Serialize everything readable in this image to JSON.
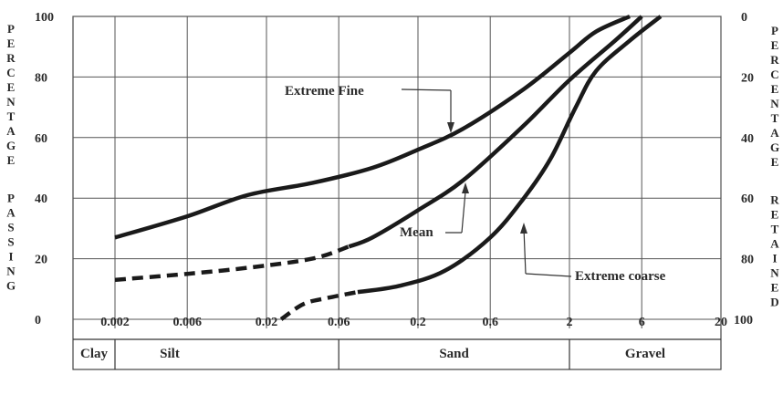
{
  "chart_data": {
    "type": "line",
    "x_scale": "log",
    "x_ticks": [
      "0.002",
      "0.006",
      "0.02",
      "0.06",
      "0.2",
      "0.6",
      "2",
      "6",
      "20"
    ],
    "y_left_ticks": [
      "100",
      "80",
      "60",
      "40",
      "20",
      "0"
    ],
    "y_right_ticks": [
      "0",
      "20",
      "40",
      "60",
      "80",
      "100"
    ],
    "ylim": [
      0,
      100
    ],
    "xlim": [
      0.002,
      20
    ],
    "y_left_label": "PERCENTAGE PASSING",
    "y_right_label": "PERCENTAGE RETAINED",
    "grid": true,
    "zones": [
      {
        "name": "Clay",
        "from": 0.001,
        "to": 0.002
      },
      {
        "name": "Silt",
        "from": 0.002,
        "to": 0.06
      },
      {
        "name": "Sand",
        "from": 0.06,
        "to": 2
      },
      {
        "name": "Gravel",
        "from": 2,
        "to": 20
      }
    ],
    "series": [
      {
        "name": "Extreme Fine",
        "points": [
          [
            0.002,
            27
          ],
          [
            0.006,
            34
          ],
          [
            0.015,
            41
          ],
          [
            0.04,
            45
          ],
          [
            0.1,
            50
          ],
          [
            0.2,
            56
          ],
          [
            0.4,
            63
          ],
          [
            1.0,
            76
          ],
          [
            2.0,
            88
          ],
          [
            3.0,
            95
          ],
          [
            5.0,
            100
          ]
        ],
        "dashed_below_x": null
      },
      {
        "name": "Mean",
        "points": [
          [
            0.002,
            13
          ],
          [
            0.006,
            15
          ],
          [
            0.015,
            17
          ],
          [
            0.04,
            20
          ],
          [
            0.07,
            24
          ],
          [
            0.1,
            27
          ],
          [
            0.2,
            36
          ],
          [
            0.4,
            46
          ],
          [
            1.0,
            64
          ],
          [
            2.0,
            79
          ],
          [
            4.0,
            92
          ],
          [
            6.0,
            100
          ]
        ],
        "dashed_below_x": 0.07
      },
      {
        "name": "Extreme coarse",
        "points": [
          [
            0.025,
            0
          ],
          [
            0.035,
            5
          ],
          [
            0.05,
            7
          ],
          [
            0.08,
            9
          ],
          [
            0.15,
            11
          ],
          [
            0.3,
            16
          ],
          [
            0.6,
            27
          ],
          [
            1.0,
            40
          ],
          [
            1.5,
            53
          ],
          [
            2.2,
            70
          ],
          [
            3.0,
            82
          ],
          [
            5.0,
            92
          ],
          [
            8.0,
            100
          ]
        ],
        "dashed_below_x": 0.06
      }
    ],
    "annotations": [
      "Extreme Fine",
      "Mean",
      "Extreme coarse"
    ]
  }
}
